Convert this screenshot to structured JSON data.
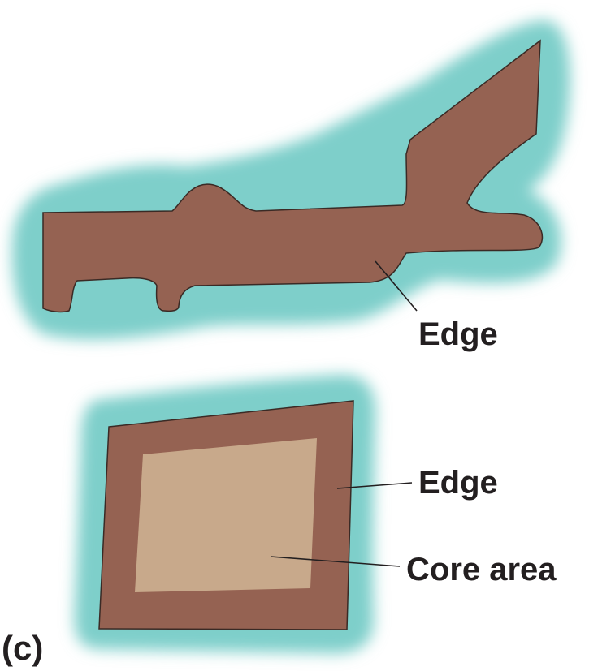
{
  "panel_label": "(c)",
  "top_shape": {
    "edge_label": "Edge"
  },
  "bottom_shape": {
    "edge_label": "Edge",
    "core_label": "Core area"
  },
  "colors": {
    "matrix": "#7ecfca",
    "edge": "#956252",
    "core": "#c8a98b",
    "outline": "#3a2a25",
    "text": "#231f20"
  }
}
